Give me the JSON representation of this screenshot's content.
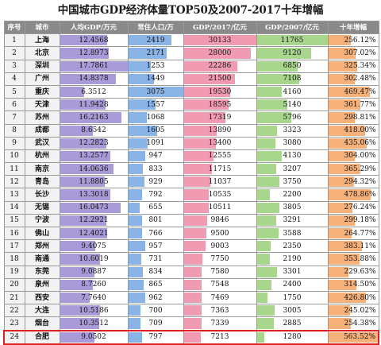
{
  "title": "中国城市GDP经济体量TOP50及2007-2017十年增幅",
  "headers": [
    "序号",
    "城市",
    "人均GDP/万元",
    "常住人口/万",
    "GDP/2017/亿元",
    "GDP/2007/亿元",
    "十年增幅"
  ],
  "chart_data": {
    "type": "table",
    "columns": [
      "序号",
      "城市",
      "人均GDP/万元",
      "常住人口/万",
      "GDP/2017/亿元",
      "GDP/2007/亿元",
      "十年增幅"
    ],
    "rows": [
      {
        "rank": "1",
        "city": "上海",
        "gdppc": 12.4568,
        "pop": 2419,
        "gdp17": 30133,
        "gdp07": 11765,
        "growth": "256.12%",
        "growth_val": 256.12
      },
      {
        "rank": "2",
        "city": "北京",
        "gdppc": 12.8973,
        "pop": 2171,
        "gdp17": 28000,
        "gdp07": 9120,
        "growth": "307.02%",
        "growth_val": 307.02
      },
      {
        "rank": "3",
        "city": "深圳",
        "gdppc": 17.7861,
        "pop": 1253,
        "gdp17": 22286,
        "gdp07": 6850,
        "growth": "325.34%",
        "growth_val": 325.34
      },
      {
        "rank": "4",
        "city": "广州",
        "gdppc": 14.8378,
        "pop": 1449,
        "gdp17": 21500,
        "gdp07": 7108,
        "growth": "302.48%",
        "growth_val": 302.48
      },
      {
        "rank": "5",
        "city": "重庆",
        "gdppc": 6.3512,
        "pop": 3075,
        "gdp17": 19530,
        "gdp07": 4160,
        "growth": "469.47%",
        "growth_val": 469.47
      },
      {
        "rank": "6",
        "city": "天津",
        "gdppc": 11.9428,
        "pop": 1557,
        "gdp17": 18595,
        "gdp07": 5140,
        "growth": "361.77%",
        "growth_val": 361.77
      },
      {
        "rank": "7",
        "city": "苏州",
        "gdppc": 16.2163,
        "pop": 1068,
        "gdp17": 17319,
        "gdp07": 5796,
        "growth": "298.81%",
        "growth_val": 298.81
      },
      {
        "rank": "8",
        "city": "成都",
        "gdppc": 8.6542,
        "pop": 1605,
        "gdp17": 13890,
        "gdp07": 3323,
        "growth": "418.00%",
        "growth_val": 418.0
      },
      {
        "rank": "9",
        "city": "武汉",
        "gdppc": 12.2823,
        "pop": 1091,
        "gdp17": 13400,
        "gdp07": 3080,
        "growth": "435.06%",
        "growth_val": 435.06
      },
      {
        "rank": "10",
        "city": "杭州",
        "gdppc": 13.2577,
        "pop": 947,
        "gdp17": 12555,
        "gdp07": 4130,
        "growth": "304.00%",
        "growth_val": 304.0
      },
      {
        "rank": "11",
        "city": "南京",
        "gdppc": 14.0636,
        "pop": 833,
        "gdp17": 11715,
        "gdp07": 3207,
        "growth": "365.29%",
        "growth_val": 365.29
      },
      {
        "rank": "12",
        "city": "青岛",
        "gdppc": 11.8805,
        "pop": 929,
        "gdp17": 11037,
        "gdp07": 3750,
        "growth": "294.32%",
        "growth_val": 294.32
      },
      {
        "rank": "13",
        "city": "长沙",
        "gdppc": 13.3018,
        "pop": 792,
        "gdp17": 10535,
        "gdp07": 2200,
        "growth": "478.86%",
        "growth_val": 478.86
      },
      {
        "rank": "14",
        "city": "无锡",
        "gdppc": 16.0473,
        "pop": 655,
        "gdp17": 10511,
        "gdp07": 3805,
        "growth": "276.24%",
        "growth_val": 276.24
      },
      {
        "rank": "15",
        "city": "宁波",
        "gdppc": 12.2921,
        "pop": 801,
        "gdp17": 9846,
        "gdp07": 3291,
        "growth": "299.18%",
        "growth_val": 299.18
      },
      {
        "rank": "16",
        "city": "佛山",
        "gdppc": 12.4021,
        "pop": 766,
        "gdp17": 9500,
        "gdp07": 3588,
        "growth": "264.77%",
        "growth_val": 264.77
      },
      {
        "rank": "17",
        "city": "郑州",
        "gdppc": 9.4075,
        "pop": 957,
        "gdp17": 9003,
        "gdp07": 2350,
        "growth": "383.11%",
        "growth_val": 383.11
      },
      {
        "rank": "18",
        "city": "南通",
        "gdppc": 10.6019,
        "pop": 731,
        "gdp17": 7750,
        "gdp07": 2190,
        "growth": "353.88%",
        "growth_val": 353.88
      },
      {
        "rank": "19",
        "city": "东莞",
        "gdppc": 9.0887,
        "pop": 834,
        "gdp17": 7580,
        "gdp07": 3301,
        "growth": "229.63%",
        "growth_val": 229.63
      },
      {
        "rank": "20",
        "city": "泉州",
        "gdppc": 8.726,
        "pop": 865,
        "gdp17": 7548,
        "gdp07": 2400,
        "growth": "314.50%",
        "growth_val": 314.5
      },
      {
        "rank": "21",
        "city": "西安",
        "gdppc": 7.764,
        "pop": 962,
        "gdp17": 7469,
        "gdp07": 1750,
        "growth": "426.80%",
        "growth_val": 426.8
      },
      {
        "rank": "22",
        "city": "大连",
        "gdppc": 10.5186,
        "pop": 700,
        "gdp17": 7363,
        "gdp07": 3005,
        "growth": "245.02%",
        "growth_val": 245.02
      },
      {
        "rank": "23",
        "city": "烟台",
        "gdppc": 10.3512,
        "pop": 709,
        "gdp17": 7339,
        "gdp07": 2885,
        "growth": "254.38%",
        "growth_val": 254.38
      },
      {
        "rank": "24",
        "city": "合肥",
        "gdppc": 9.0502,
        "pop": 797,
        "gdp17": 7213,
        "gdp07": 1280,
        "growth": "563.52%",
        "growth_val": 563.52
      }
    ],
    "highlighted_row": "24",
    "colors": {
      "header_bg": "#8a8a8a",
      "gdppc_bar": "#a99ad8",
      "pop_bar": "#8ab4e6",
      "gdp17_bar": "#f19bb3",
      "gdp07_bar": "#a8d68c",
      "growth_bar": "#f6b07a",
      "highlight_border": "#dd2222"
    }
  }
}
